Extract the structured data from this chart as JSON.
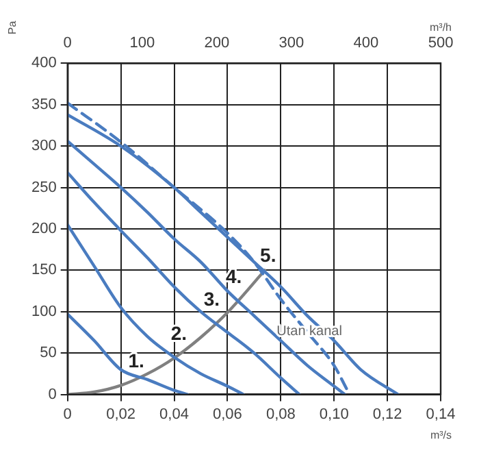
{
  "chart_data": {
    "type": "line",
    "xlabel": "m³/s",
    "ylabel": "Pa",
    "x2label": "m³/h",
    "xlim": [
      0,
      0.14
    ],
    "xticks": [
      {
        "value": 0,
        "label": "0"
      },
      {
        "value": 0.02,
        "label": "0,02"
      },
      {
        "value": 0.04,
        "label": "0,04"
      },
      {
        "value": 0.06,
        "label": "0,06"
      },
      {
        "value": 0.08,
        "label": "0,08"
      },
      {
        "value": 0.1,
        "label": "0,10"
      },
      {
        "value": 0.12,
        "label": "0,12"
      },
      {
        "value": 0.14,
        "label": "0,14"
      }
    ],
    "x2lim": [
      0,
      500
    ],
    "x2ticks": [
      0,
      100,
      200,
      300,
      400,
      500
    ],
    "ylim": [
      0,
      400
    ],
    "yticks": [
      0,
      50,
      100,
      150,
      200,
      250,
      300,
      350,
      400
    ],
    "grid": true,
    "legend": false,
    "marker": "none",
    "series": [
      {
        "name": "1.",
        "color": "#4a7cc0",
        "x": [
          0,
          0.01,
          0.02,
          0.03,
          0.04,
          0.045
        ],
        "values": [
          97,
          65,
          30,
          18,
          5,
          0
        ]
      },
      {
        "name": "2.",
        "color": "#4a7cc0",
        "x": [
          0,
          0.01,
          0.02,
          0.03,
          0.04,
          0.05,
          0.06,
          0.066
        ],
        "values": [
          205,
          155,
          105,
          70,
          45,
          25,
          10,
          0
        ]
      },
      {
        "name": "3.",
        "color": "#4a7cc0",
        "x": [
          0,
          0.01,
          0.02,
          0.03,
          0.04,
          0.05,
          0.06,
          0.07,
          0.08,
          0.087
        ],
        "values": [
          268,
          232,
          198,
          165,
          130,
          100,
          75,
          50,
          20,
          0
        ]
      },
      {
        "name": "4.",
        "color": "#4a7cc0",
        "x": [
          0,
          0.02,
          0.03,
          0.04,
          0.05,
          0.06,
          0.07,
          0.08,
          0.09,
          0.1,
          0.104
        ],
        "values": [
          306,
          250,
          220,
          188,
          160,
          125,
          95,
          65,
          35,
          10,
          0
        ]
      },
      {
        "name": "5.",
        "color": "#4a7cc0",
        "x": [
          0,
          0.02,
          0.04,
          0.05,
          0.06,
          0.07,
          0.08,
          0.09,
          0.1,
          0.11,
          0.124
        ],
        "values": [
          338,
          300,
          250,
          220,
          190,
          160,
          130,
          95,
          65,
          30,
          0
        ]
      },
      {
        "name": "Utan kanal",
        "color": "#4a7cc0",
        "line_style": "dashed",
        "x": [
          0,
          0.02,
          0.04,
          0.06,
          0.07,
          0.08,
          0.09,
          0.1,
          0.105
        ],
        "values": [
          352,
          305,
          250,
          195,
          160,
          115,
          75,
          35,
          5
        ]
      },
      {
        "color": "#808080",
        "x": [
          0,
          0.01,
          0.02,
          0.03,
          0.04,
          0.05,
          0.06,
          0.074
        ],
        "values": [
          0,
          3,
          11,
          25,
          44,
          69,
          99,
          150
        ]
      }
    ]
  }
}
